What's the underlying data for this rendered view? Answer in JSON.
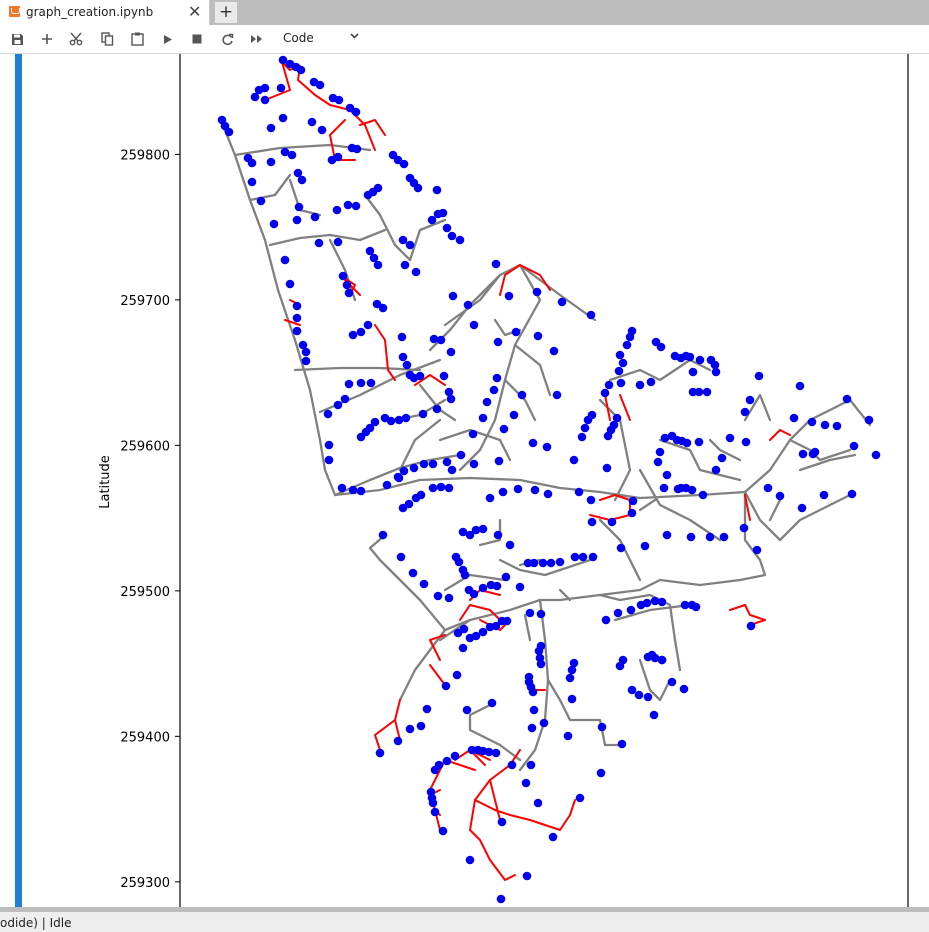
{
  "tab": {
    "title": "graph_creation.ipynb",
    "close": "✕",
    "new_tab": "+"
  },
  "toolbar": {
    "icons": [
      "save-icon",
      "add-cell-icon",
      "cut-icon",
      "copy-icon",
      "paste-icon",
      "run-icon",
      "stop-icon",
      "restart-icon",
      "run-all-icon"
    ],
    "cell_type": "Code"
  },
  "chart_data": {
    "type": "scatter",
    "ylabel": "Latitude",
    "yticks": [
      259800,
      259700,
      259600,
      259500,
      259400,
      259300
    ],
    "ylim": [
      259282,
      259869
    ],
    "series_colors": {
      "nodes": "#0000ee",
      "gray_edges": "#808080",
      "red_edges": "#ff0000"
    }
  },
  "status": {
    "text": "odide) | Idle"
  }
}
